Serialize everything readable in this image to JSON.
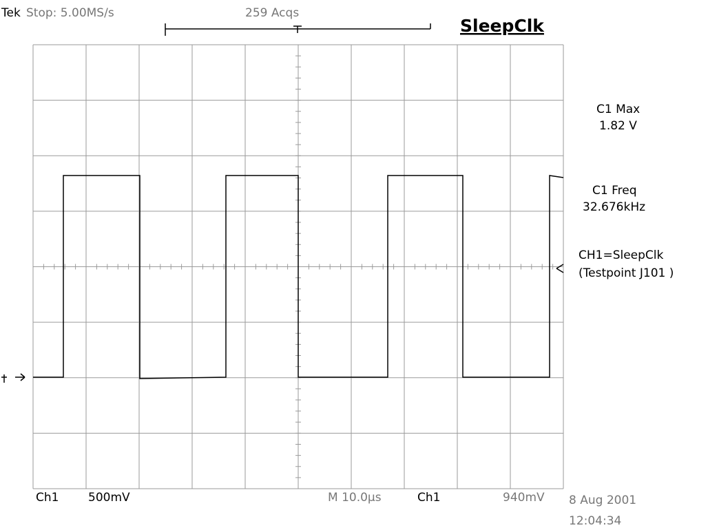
{
  "header": {
    "brand": "Tek",
    "status": "Stop: 5.00MS/s",
    "acquisitions": "259 Acqs",
    "title": "SleepClk"
  },
  "measurements": [
    {
      "label": "C1 Max",
      "value": "1.82 V"
    },
    {
      "label": "C1 Freq",
      "value": "32.676kHz"
    }
  ],
  "note": [
    "CH1=SleepClk",
    "(Testpoint J101 )"
  ],
  "footer": {
    "channel": "Ch1",
    "scale": "500mV",
    "timebase": "M 10.0µs",
    "trigger_source": "Ch1",
    "trigger_level": "940mV",
    "date": "8 Aug 2001",
    "time": "12:04:34"
  }
}
